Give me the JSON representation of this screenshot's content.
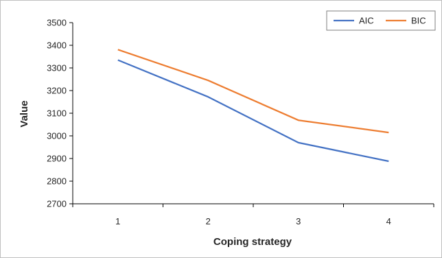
{
  "chart_data": {
    "type": "line",
    "title": "",
    "xlabel": "Coping strategy",
    "ylabel": "Value",
    "categories": [
      "1",
      "2",
      "3",
      "4"
    ],
    "ylim": [
      2700,
      3500
    ],
    "yticks": [
      2700,
      2800,
      2900,
      3000,
      3100,
      3200,
      3300,
      3400,
      3500
    ],
    "grid": false,
    "legend_position": "top-right",
    "series": [
      {
        "name": "AIC",
        "color": "#4472C4",
        "values": [
          3335,
          3172,
          2970,
          2888
        ]
      },
      {
        "name": "BIC",
        "color": "#ED7D31",
        "values": [
          3381,
          3245,
          3069,
          3015
        ]
      }
    ]
  }
}
